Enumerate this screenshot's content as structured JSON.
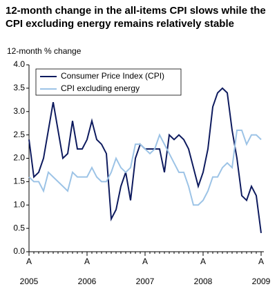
{
  "chart_data": {
    "type": "line",
    "title": "12-month change in the all-items CPI slows while the CPI excluding energy remains relatively stable",
    "y_label": "12-month % change",
    "categories": [
      "A",
      null,
      null,
      null,
      null,
      null,
      null,
      null,
      null,
      null,
      null,
      null,
      "A",
      null,
      null,
      null,
      null,
      null,
      null,
      null,
      null,
      null,
      null,
      null,
      "A",
      null,
      null,
      null,
      null,
      null,
      null,
      null,
      null,
      null,
      null,
      null,
      "A",
      null,
      null,
      null,
      null,
      null,
      null,
      null,
      null,
      null,
      null,
      null,
      "A"
    ],
    "years": [
      "2005",
      "2006",
      "2007",
      "2008",
      "2009"
    ],
    "ylim": [
      0,
      4
    ],
    "yticks": [
      {
        "value": 0,
        "label": "0.0"
      },
      {
        "value": 0.5,
        "label": "0.5"
      },
      {
        "value": 1,
        "label": "1.0"
      },
      {
        "value": 1.5,
        "label": "1.5"
      },
      {
        "value": 2,
        "label": "2.0"
      },
      {
        "value": 2.5,
        "label": "2.5"
      },
      {
        "value": 3,
        "label": "3.0"
      },
      {
        "value": 3.5,
        "label": "3.5"
      },
      {
        "value": 4,
        "label": "4.0"
      }
    ],
    "legend": "top-left",
    "series": [
      {
        "name": "Consumer Price Index (CPI)",
        "color": "#0d1a5e",
        "values": [
          2.4,
          1.6,
          1.7,
          2.0,
          2.6,
          3.2,
          2.6,
          2.0,
          2.1,
          2.8,
          2.2,
          2.2,
          2.4,
          2.8,
          2.4,
          2.3,
          2.1,
          0.7,
          0.9,
          1.4,
          1.7,
          1.1,
          2.0,
          2.3,
          2.2,
          2.2,
          2.2,
          2.2,
          1.7,
          2.5,
          2.4,
          2.5,
          2.4,
          2.2,
          1.8,
          1.4,
          1.7,
          2.2,
          3.1,
          3.4,
          3.5,
          3.4,
          2.6,
          2.0,
          1.2,
          1.1,
          1.4,
          1.2,
          0.4
        ]
      },
      {
        "name": "CPI excluding energy",
        "color": "#9cc3e6",
        "values": [
          1.6,
          1.5,
          1.5,
          1.3,
          1.7,
          1.6,
          1.5,
          1.4,
          1.3,
          1.7,
          1.6,
          1.6,
          1.6,
          1.8,
          1.6,
          1.5,
          1.5,
          1.7,
          2.0,
          1.8,
          1.7,
          1.8,
          2.3,
          2.3,
          2.2,
          2.1,
          2.2,
          2.5,
          2.3,
          2.1,
          1.9,
          1.7,
          1.7,
          1.4,
          1.0,
          1.0,
          1.1,
          1.3,
          1.6,
          1.6,
          1.8,
          1.9,
          1.8,
          2.6,
          2.6,
          2.3,
          2.5,
          2.5,
          2.4
        ]
      }
    ]
  }
}
